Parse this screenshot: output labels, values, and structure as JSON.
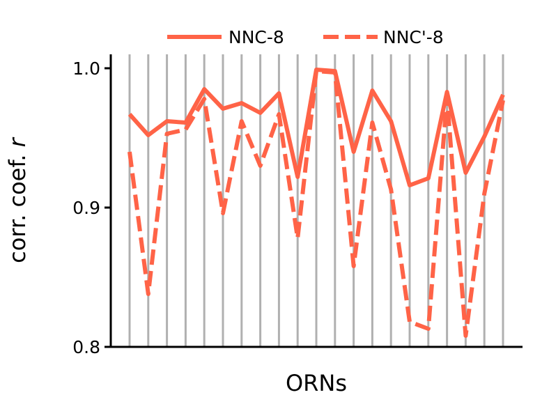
{
  "chart_data": {
    "type": "line",
    "xlabel": "ORNs",
    "ylabel": "corr. coef. r",
    "ylabel_parts": [
      "corr. coef. ",
      "r"
    ],
    "ylim": [
      0.8,
      1.0
    ],
    "yticks": [
      0.8,
      0.9,
      1.0
    ],
    "ytick_labels": [
      "0.8",
      "0.9",
      "1.0"
    ],
    "x_count": 21,
    "grid": "vertical lines at each ORN",
    "legend_position": "top",
    "series_color": "#ff6347",
    "grid_color": "#b0b0b0",
    "series": [
      {
        "name": "NNC-8",
        "style": "solid",
        "values": [
          0.967,
          0.952,
          0.962,
          0.961,
          0.985,
          0.971,
          0.975,
          0.968,
          0.982,
          0.922,
          0.999,
          0.998,
          0.94,
          0.984,
          0.962,
          0.916,
          0.921,
          0.983,
          0.925,
          0.951,
          0.981
        ]
      },
      {
        "name": "NNC'-8",
        "style": "dashed",
        "values": [
          0.94,
          0.838,
          0.953,
          0.956,
          0.978,
          0.896,
          0.962,
          0.93,
          0.967,
          0.878,
          0.998,
          0.997,
          0.858,
          0.961,
          0.913,
          0.818,
          0.813,
          0.979,
          0.808,
          0.91,
          0.977
        ]
      }
    ]
  }
}
